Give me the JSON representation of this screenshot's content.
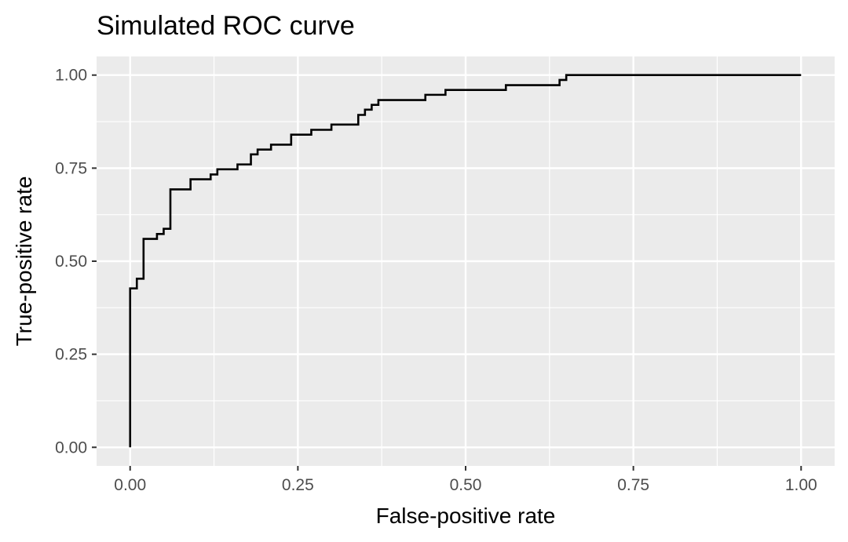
{
  "chart_data": {
    "type": "line",
    "title": "Simulated ROC curve",
    "xlabel": "False-positive rate",
    "ylabel": "True-positive rate",
    "xlim": [
      -0.05,
      1.05
    ],
    "ylim": [
      -0.05,
      1.05
    ],
    "x_ticks": [
      0,
      0.25,
      0.5,
      0.75,
      1
    ],
    "x_tick_labels": [
      "0.00",
      "0.25",
      "0.50",
      "0.75",
      "1.00"
    ],
    "y_ticks": [
      0,
      0.25,
      0.5,
      0.75,
      1
    ],
    "y_tick_labels": [
      "0.00",
      "0.25",
      "0.50",
      "0.75",
      "1.00"
    ],
    "grid": true,
    "step": true,
    "series": [
      {
        "x": [
          0,
          0,
          0.01,
          0.02,
          0.04,
          0.05,
          0.06,
          0.09,
          0.12,
          0.13,
          0.16,
          0.18,
          0.19,
          0.21,
          0.24,
          0.27,
          0.3,
          0.34,
          0.35,
          0.36,
          0.37,
          0.38,
          0.44,
          0.47,
          0.56,
          0.64,
          0.65,
          1.0
        ],
        "y": [
          0,
          0.427,
          0.453,
          0.56,
          0.573,
          0.587,
          0.693,
          0.72,
          0.733,
          0.747,
          0.76,
          0.787,
          0.8,
          0.813,
          0.84,
          0.853,
          0.867,
          0.893,
          0.907,
          0.92,
          0.933,
          0.933,
          0.947,
          0.96,
          0.973,
          0.987,
          1.0,
          1.0
        ]
      }
    ]
  }
}
